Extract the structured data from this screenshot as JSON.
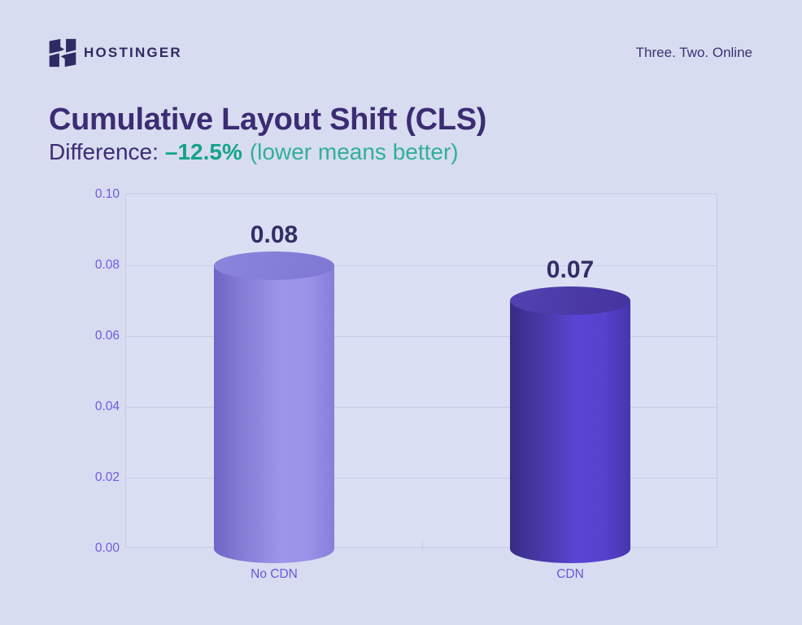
{
  "header": {
    "brand": "HOSTINGER",
    "tagline": "Three. Two. Online"
  },
  "title": "Cumulative Layout Shift (CLS)",
  "subtitle": {
    "prefix": "Difference:",
    "value": "–12.5%",
    "note": "(lower means better)"
  },
  "chart_data": {
    "type": "bar",
    "style": "3d-cylinder",
    "title": "Cumulative Layout Shift (CLS)",
    "categories": [
      "No CDN",
      "CDN"
    ],
    "values": [
      0.08,
      0.07
    ],
    "value_labels": [
      "0.08",
      "0.07"
    ],
    "xlabel": "",
    "ylabel": "",
    "ylim": [
      0,
      0.1
    ],
    "yticks": [
      0,
      0.02,
      0.04,
      0.06,
      0.08,
      0.1
    ],
    "ytick_labels": [
      "0.00",
      "0.02",
      "0.04",
      "0.06",
      "0.08",
      "0.10"
    ],
    "grid": true,
    "legend": false,
    "bar_styles": [
      {
        "name": "light-periwinkle-cylinder",
        "top": [
          "#8B85DE",
          "#7F78D2"
        ],
        "body": [
          "#6F66C6",
          "#8279D3",
          "#9C95E9",
          "#9A93E7",
          "#867EDA"
        ]
      },
      {
        "name": "dark-violet-cylinder",
        "top": [
          "#5243B2",
          "#44339D"
        ],
        "body": [
          "#372C86",
          "#45359F",
          "#5945D3",
          "#5642CE",
          "#4835AC"
        ]
      }
    ]
  },
  "colors": {
    "page_bg": "#D8DCF0",
    "plot_bg": "#DBDFF3",
    "grid": "#C4CBE7",
    "title": "#3B2C74",
    "brand_navy": "#2F2A63",
    "tagline": "#3A3274",
    "difference_teal": "#14A38A",
    "note_teal": "#2FB09A",
    "ytick_label": "#6C5CE0",
    "xcategory_label": "#6458DB",
    "value_label": "#332D68"
  }
}
